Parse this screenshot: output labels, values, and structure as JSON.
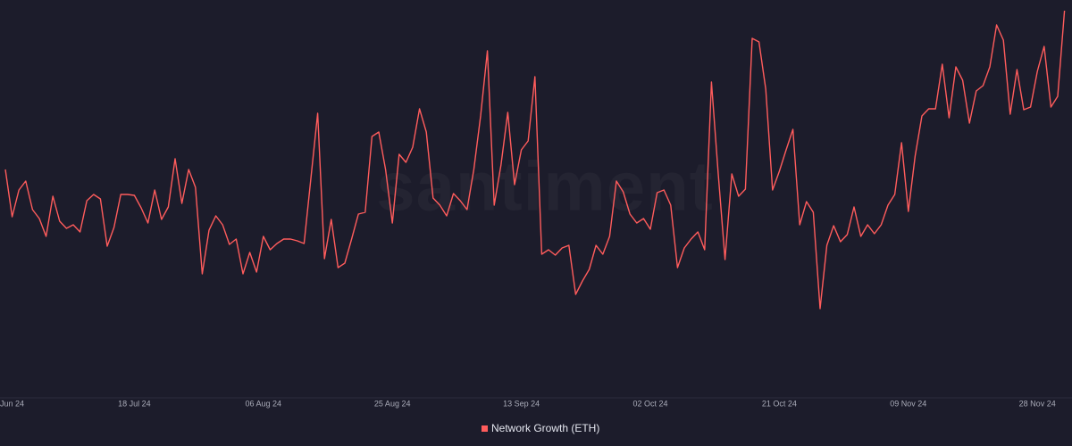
{
  "chart_data": {
    "type": "line",
    "watermark": "santiment",
    "categories": [
      "Jun 24",
      null,
      null,
      null,
      null,
      null,
      null,
      null,
      null,
      null,
      null,
      null,
      null,
      null,
      null,
      null,
      null,
      null,
      null,
      "18 Jul 24",
      null,
      null,
      null,
      null,
      null,
      null,
      null,
      null,
      null,
      null,
      null,
      null,
      null,
      null,
      null,
      null,
      null,
      null,
      "06 Aug 24",
      null,
      null,
      null,
      null,
      null,
      null,
      null,
      null,
      null,
      null,
      null,
      null,
      null,
      null,
      null,
      null,
      null,
      null,
      "25 Aug 24",
      null,
      null,
      null,
      null,
      null,
      null,
      null,
      null,
      null,
      null,
      null,
      null,
      null,
      null,
      null,
      null,
      null,
      null,
      "13 Sep 24",
      null,
      null,
      null,
      null,
      null,
      null,
      null,
      null,
      null,
      null,
      null,
      null,
      null,
      null,
      null,
      null,
      null,
      null,
      "02 Oct 24",
      null,
      null,
      null,
      null,
      null,
      null,
      null,
      null,
      null,
      null,
      null,
      null,
      null,
      null,
      null,
      null,
      null,
      null,
      "21 Oct 24",
      null,
      null,
      null,
      null,
      null,
      null,
      null,
      null,
      null,
      null,
      null,
      null,
      null,
      null,
      null,
      null,
      null,
      null,
      "09 Nov 24",
      null,
      null,
      null,
      null,
      null,
      null,
      null,
      null,
      null,
      null,
      null,
      null,
      null,
      null,
      null,
      null,
      null,
      null,
      "28 Nov 24",
      null,
      null,
      null,
      null
    ],
    "series": [
      {
        "name": "Network Growth (ETH)",
        "color": "#ff5c5c",
        "values": [
          260,
          207,
          237,
          247,
          215,
          205,
          185,
          230,
          202,
          194,
          198,
          190,
          225,
          232,
          227,
          174,
          195,
          232,
          232,
          231,
          217,
          200,
          237,
          204,
          218,
          272,
          222,
          260,
          240,
          143,
          192,
          208,
          198,
          176,
          182,
          143,
          167,
          145,
          185,
          170,
          177,
          182,
          182,
          180,
          177,
          250,
          323,
          160,
          204,
          150,
          155,
          182,
          210,
          212,
          297,
          302,
          260,
          200,
          277,
          268,
          285,
          328,
          302,
          228,
          220,
          208,
          233,
          225,
          215,
          260,
          320,
          393,
          220,
          265,
          324,
          243,
          282,
          292,
          364,
          165,
          170,
          164,
          172,
          175,
          120,
          135,
          148,
          175,
          165,
          185,
          247,
          235,
          210,
          200,
          205,
          193,
          234,
          237,
          220,
          150,
          172,
          182,
          190,
          170,
          358,
          255,
          159,
          255,
          230,
          238,
          407,
          403,
          350,
          237,
          258,
          282,
          305,
          198,
          224,
          212,
          104,
          175,
          197,
          179,
          187,
          218,
          185,
          198,
          188,
          198,
          220,
          232,
          290,
          213,
          275,
          320,
          328,
          328,
          378,
          318,
          375,
          360,
          312,
          348,
          354,
          375,
          422,
          405,
          322,
          372,
          327,
          330,
          370,
          398,
          330,
          342,
          438
        ]
      }
    ]
  }
}
